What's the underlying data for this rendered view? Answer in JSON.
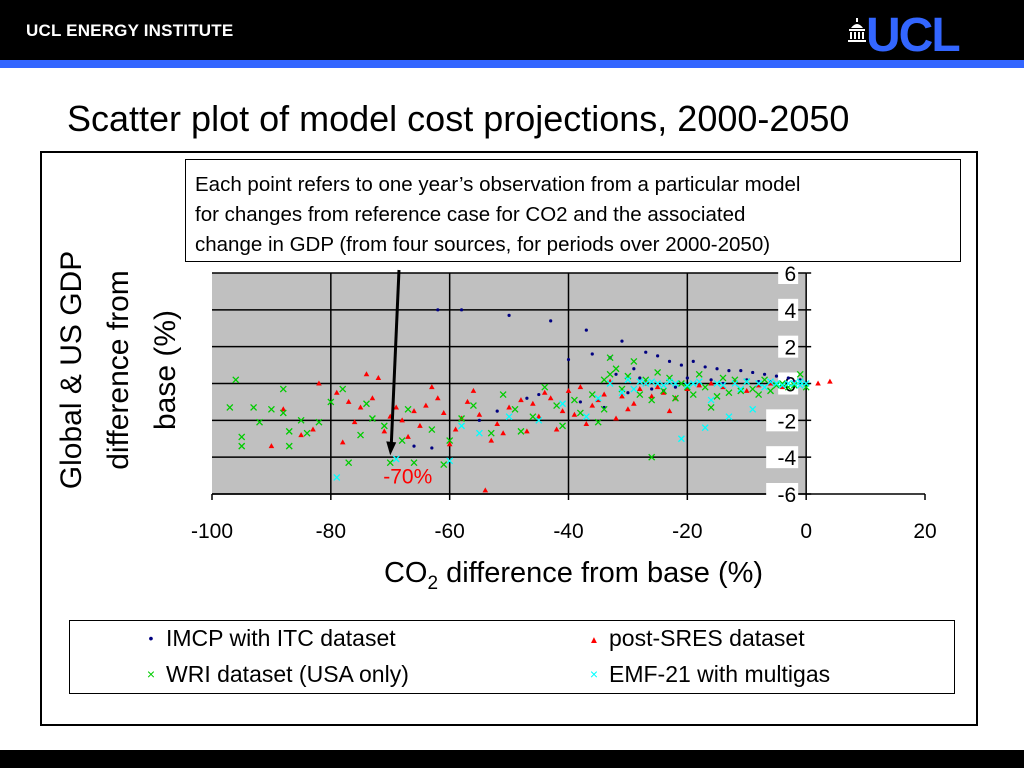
{
  "header": {
    "institute": "UCL ENERGY INSTITUTE",
    "logo_text": "UCL",
    "colors": {
      "bar": "#000000",
      "accent": "#3366ff"
    }
  },
  "slide": {
    "title": "Scatter plot of model cost projections, 2000-2050",
    "note_lines": [
      "Each point refers to one year’s observation from a particular model",
      "for changes from reference case for CO2 and the associated",
      "change in GDP (from four sources, for periods over 2000-2050)"
    ]
  },
  "chart_data": {
    "type": "scatter",
    "xlabel_main": "CO",
    "xlabel_sub": "2",
    "xlabel_rest": " difference from base (%)",
    "ylabel_lines": [
      "Global & US GDP",
      "difference from",
      "base  (%)"
    ],
    "xlim": [
      -100,
      20
    ],
    "ylim": [
      -6,
      6
    ],
    "x_ticks": [
      -100,
      -80,
      -60,
      -40,
      -20,
      0,
      20
    ],
    "y_ticks": [
      6,
      4,
      2,
      0,
      -2,
      -4,
      -6
    ],
    "grid": true,
    "plot_background": "#c0c0c0",
    "annotation": {
      "text": "-70%",
      "x": -70,
      "y": -3.9,
      "color": "#ff0000"
    },
    "series": [
      {
        "name": "IMCP with ITC dataset",
        "marker": "dot",
        "color": "#000080",
        "points": [
          [
            -62,
            4
          ],
          [
            -58,
            4
          ],
          [
            -50,
            3.7
          ],
          [
            -43,
            3.4
          ],
          [
            -37,
            2.9
          ],
          [
            -31,
            2.3
          ],
          [
            -27,
            1.7
          ],
          [
            -25,
            1.5
          ],
          [
            -23,
            1.2
          ],
          [
            -21,
            1
          ],
          [
            -19,
            1.2
          ],
          [
            -17,
            0.9
          ],
          [
            -15,
            0.8
          ],
          [
            -13,
            0.7
          ],
          [
            -11,
            0.7
          ],
          [
            -9,
            0.6
          ],
          [
            -7,
            0.5
          ],
          [
            -5,
            0.4
          ],
          [
            -3,
            0.3
          ],
          [
            -1,
            0.2
          ],
          [
            -20,
            0.3
          ],
          [
            -16,
            0.2
          ],
          [
            -12,
            0.1
          ],
          [
            -8,
            0.1
          ],
          [
            -40,
            1.3
          ],
          [
            -36,
            1.6
          ],
          [
            -33,
            1.4
          ],
          [
            -29,
            0.8
          ],
          [
            -26,
            -0.3
          ],
          [
            -22,
            -0.2
          ],
          [
            -18,
            -0.1
          ],
          [
            -14,
            0.0
          ],
          [
            -10,
            0.2
          ],
          [
            -6,
            0.1
          ],
          [
            -2,
            0.1
          ],
          [
            -45,
            -0.6
          ],
          [
            -38,
            -1.0
          ],
          [
            -34,
            -1.3
          ],
          [
            -30,
            -0.5
          ],
          [
            -24,
            -0.4
          ],
          [
            -66,
            -3.4
          ],
          [
            -63,
            -3.5
          ],
          [
            -55,
            -2.0
          ],
          [
            -52,
            -1.5
          ],
          [
            -47,
            -0.8
          ],
          [
            -32,
            0.5
          ],
          [
            -28,
            0.3
          ]
        ]
      },
      {
        "name": "post-SRES dataset",
        "marker": "triangle",
        "color": "#ff0000",
        "points": [
          [
            -82,
            0
          ],
          [
            -79,
            -0.5
          ],
          [
            -77,
            -1
          ],
          [
            -75,
            -1.3
          ],
          [
            -73,
            -0.8
          ],
          [
            -72,
            0.3
          ],
          [
            -70,
            -1.8
          ],
          [
            -68,
            -2
          ],
          [
            -66,
            -1.5
          ],
          [
            -64,
            -1.2
          ],
          [
            -62,
            -0.8
          ],
          [
            -61,
            -1.6
          ],
          [
            -60,
            -3.3
          ],
          [
            -59,
            -2.5
          ],
          [
            -57,
            -1
          ],
          [
            -56,
            -0.4
          ],
          [
            -55,
            -1.7
          ],
          [
            -54,
            -5.8
          ],
          [
            -53,
            -3.1
          ],
          [
            -52,
            -2.2
          ],
          [
            -50,
            -1.3
          ],
          [
            -48,
            -0.9
          ],
          [
            -47,
            -2.6
          ],
          [
            -45,
            -1.8
          ],
          [
            -44,
            -0.5
          ],
          [
            -43,
            -0.8
          ],
          [
            -42,
            -2.5
          ],
          [
            -41,
            -1.5
          ],
          [
            -40,
            -0.4
          ],
          [
            -38,
            -0.2
          ],
          [
            -36,
            -1.2
          ],
          [
            -35,
            -0.9
          ],
          [
            -33,
            0.1
          ],
          [
            -31,
            -0.7
          ],
          [
            -30,
            -1.4
          ],
          [
            -28,
            -0.3
          ],
          [
            -27,
            0
          ],
          [
            -25,
            -0.2
          ],
          [
            -24,
            -0.5
          ],
          [
            -22,
            -0.8
          ],
          [
            -20,
            -0.3
          ],
          [
            -18,
            -0.1
          ],
          [
            -16,
            0
          ],
          [
            -14,
            -0.2
          ],
          [
            -12,
            0.1
          ],
          [
            -10,
            -0.4
          ],
          [
            -8,
            -0.1
          ],
          [
            -6,
            0
          ],
          [
            -4,
            -0.2
          ],
          [
            -2,
            0
          ],
          [
            2,
            0
          ],
          [
            4,
            0.1
          ],
          [
            -85,
            -2.8
          ],
          [
            -90,
            -3.4
          ],
          [
            -88,
            -1.4
          ],
          [
            -83,
            -2.5
          ],
          [
            -78,
            -3.2
          ],
          [
            -76,
            -2.1
          ],
          [
            -74,
            0.5
          ],
          [
            -71,
            -2.6
          ],
          [
            -69,
            -1.3
          ],
          [
            -67,
            -2.9
          ],
          [
            -65,
            -2.3
          ],
          [
            -63,
            -0.2
          ],
          [
            -58,
            -1.9
          ],
          [
            -51,
            -2.7
          ],
          [
            -46,
            -1.1
          ],
          [
            -39,
            -1.7
          ],
          [
            -37,
            -2.2
          ],
          [
            -34,
            -0.6
          ],
          [
            -32,
            -1.9
          ],
          [
            -29,
            -1.1
          ],
          [
            -26,
            -0.7
          ],
          [
            -23,
            -1.5
          ]
        ]
      },
      {
        "name": "WRI dataset (USA only)",
        "marker": "x",
        "color": "#00cc00",
        "points": [
          [
            -97,
            -1.3
          ],
          [
            -96,
            0.2
          ],
          [
            -95,
            -2.9
          ],
          [
            -95,
            -3.4
          ],
          [
            -93,
            -1.3
          ],
          [
            -92,
            -2.1
          ],
          [
            -90,
            -1.4
          ],
          [
            -88,
            -0.3
          ],
          [
            -88,
            -1.6
          ],
          [
            -87,
            -2.6
          ],
          [
            -87,
            -3.4
          ],
          [
            -85,
            -2
          ],
          [
            -84,
            -2.7
          ],
          [
            -82,
            -2.1
          ],
          [
            -80,
            -1
          ],
          [
            -78,
            -0.3
          ],
          [
            -77,
            -4.3
          ],
          [
            -75,
            -2.8
          ],
          [
            -74,
            -1.1
          ],
          [
            -73,
            -1.9
          ],
          [
            -71,
            -2.3
          ],
          [
            -70,
            -4.3
          ],
          [
            -68,
            -3.1
          ],
          [
            -67,
            -1.4
          ],
          [
            -66,
            -4.3
          ],
          [
            -63,
            -2.5
          ],
          [
            -61,
            -4.4
          ],
          [
            -60,
            -3.1
          ],
          [
            -58,
            -1.9
          ],
          [
            -56,
            -1.2
          ],
          [
            -53,
            -2.7
          ],
          [
            -51,
            -0.6
          ],
          [
            -49,
            -1.4
          ],
          [
            -48,
            -2.6
          ],
          [
            -46,
            -1.8
          ],
          [
            -44,
            -0.2
          ],
          [
            -42,
            -1.2
          ],
          [
            -41,
            -2.3
          ],
          [
            -39,
            -0.9
          ],
          [
            -38,
            -1.6
          ],
          [
            -36,
            -0.6
          ],
          [
            -35,
            -2.1
          ],
          [
            -34,
            -1.4
          ],
          [
            -34,
            0.2
          ],
          [
            -33,
            0.5
          ],
          [
            -33,
            1.4
          ],
          [
            -32,
            0.8
          ],
          [
            -31,
            -0.3
          ],
          [
            -30,
            0.4
          ],
          [
            -29,
            1.2
          ],
          [
            -28,
            -0.6
          ],
          [
            -27,
            0.2
          ],
          [
            -26,
            -0.9
          ],
          [
            -26,
            -4
          ],
          [
            -25,
            0.6
          ],
          [
            -24,
            -0.4
          ],
          [
            -23,
            0.3
          ],
          [
            -22,
            -0.8
          ],
          [
            -21,
            0
          ],
          [
            -20,
            -0.2
          ],
          [
            -19,
            -0.6
          ],
          [
            -18,
            0.5
          ],
          [
            -17,
            -0.2
          ],
          [
            -16,
            -1.3
          ],
          [
            -15,
            -0.7
          ],
          [
            -14,
            0.3
          ],
          [
            -13,
            -0.5
          ],
          [
            -12,
            0.2
          ],
          [
            -11,
            -0.4
          ],
          [
            -10,
            0.1
          ],
          [
            -9,
            -0.3
          ],
          [
            -8,
            -0.6
          ],
          [
            -7,
            0.2
          ],
          [
            -6,
            -0.4
          ],
          [
            -5,
            -0.1
          ],
          [
            -4,
            0
          ],
          [
            -3,
            -0.2
          ],
          [
            -2,
            -0.1
          ],
          [
            -1,
            0.5
          ],
          [
            -1,
            0.1
          ],
          [
            0,
            -0.2
          ]
        ]
      },
      {
        "name": "EMF-21 with multigas",
        "marker": "x",
        "color": "#00ffff",
        "points": [
          [
            -79,
            -5.1
          ],
          [
            -69,
            -4.1
          ],
          [
            -60,
            -4.2
          ],
          [
            -58,
            -2.3
          ],
          [
            -55,
            -2.7
          ],
          [
            -50,
            -1.8
          ],
          [
            -45,
            -2
          ],
          [
            -41,
            -1.1
          ],
          [
            -37,
            -1.8
          ],
          [
            -35,
            -0.8
          ],
          [
            -33,
            0
          ],
          [
            -31,
            -0.5
          ],
          [
            -30,
            0.2
          ],
          [
            -29,
            -0.3
          ],
          [
            -28,
            0.1
          ],
          [
            -27,
            0
          ],
          [
            -26,
            0.1
          ],
          [
            -25,
            0
          ],
          [
            -24,
            -0.1
          ],
          [
            -23,
            0.1
          ],
          [
            -22,
            0
          ],
          [
            -21,
            -3
          ],
          [
            -20,
            -0.1
          ],
          [
            -19,
            0
          ],
          [
            -18,
            0.1
          ],
          [
            -17,
            -2.4
          ],
          [
            -16,
            -0.9
          ],
          [
            -15,
            0
          ],
          [
            -14,
            -0.1
          ],
          [
            -13,
            -1.8
          ],
          [
            -12,
            0
          ],
          [
            -11,
            -0.3
          ],
          [
            -10,
            0.1
          ],
          [
            -9,
            -1.4
          ],
          [
            -8,
            0
          ],
          [
            -7,
            -0.2
          ],
          [
            -6,
            0.1
          ],
          [
            -5,
            0
          ],
          [
            -4,
            -0.1
          ],
          [
            -3,
            0
          ],
          [
            -2,
            0
          ],
          [
            -1,
            0.1
          ],
          [
            -1,
            -0.1
          ],
          [
            0,
            0
          ]
        ]
      }
    ]
  },
  "legend": [
    {
      "label": "IMCP with ITC dataset",
      "glyph": "•",
      "color": "#000080"
    },
    {
      "label": "post-SRES dataset",
      "glyph": "▲",
      "color": "#ff0000"
    },
    {
      "label": "WRI dataset (USA only)",
      "glyph": "×",
      "color": "#00cc00"
    },
    {
      "label": "EMF-21 with multigas",
      "glyph": "×",
      "color": "#00ffff"
    }
  ]
}
